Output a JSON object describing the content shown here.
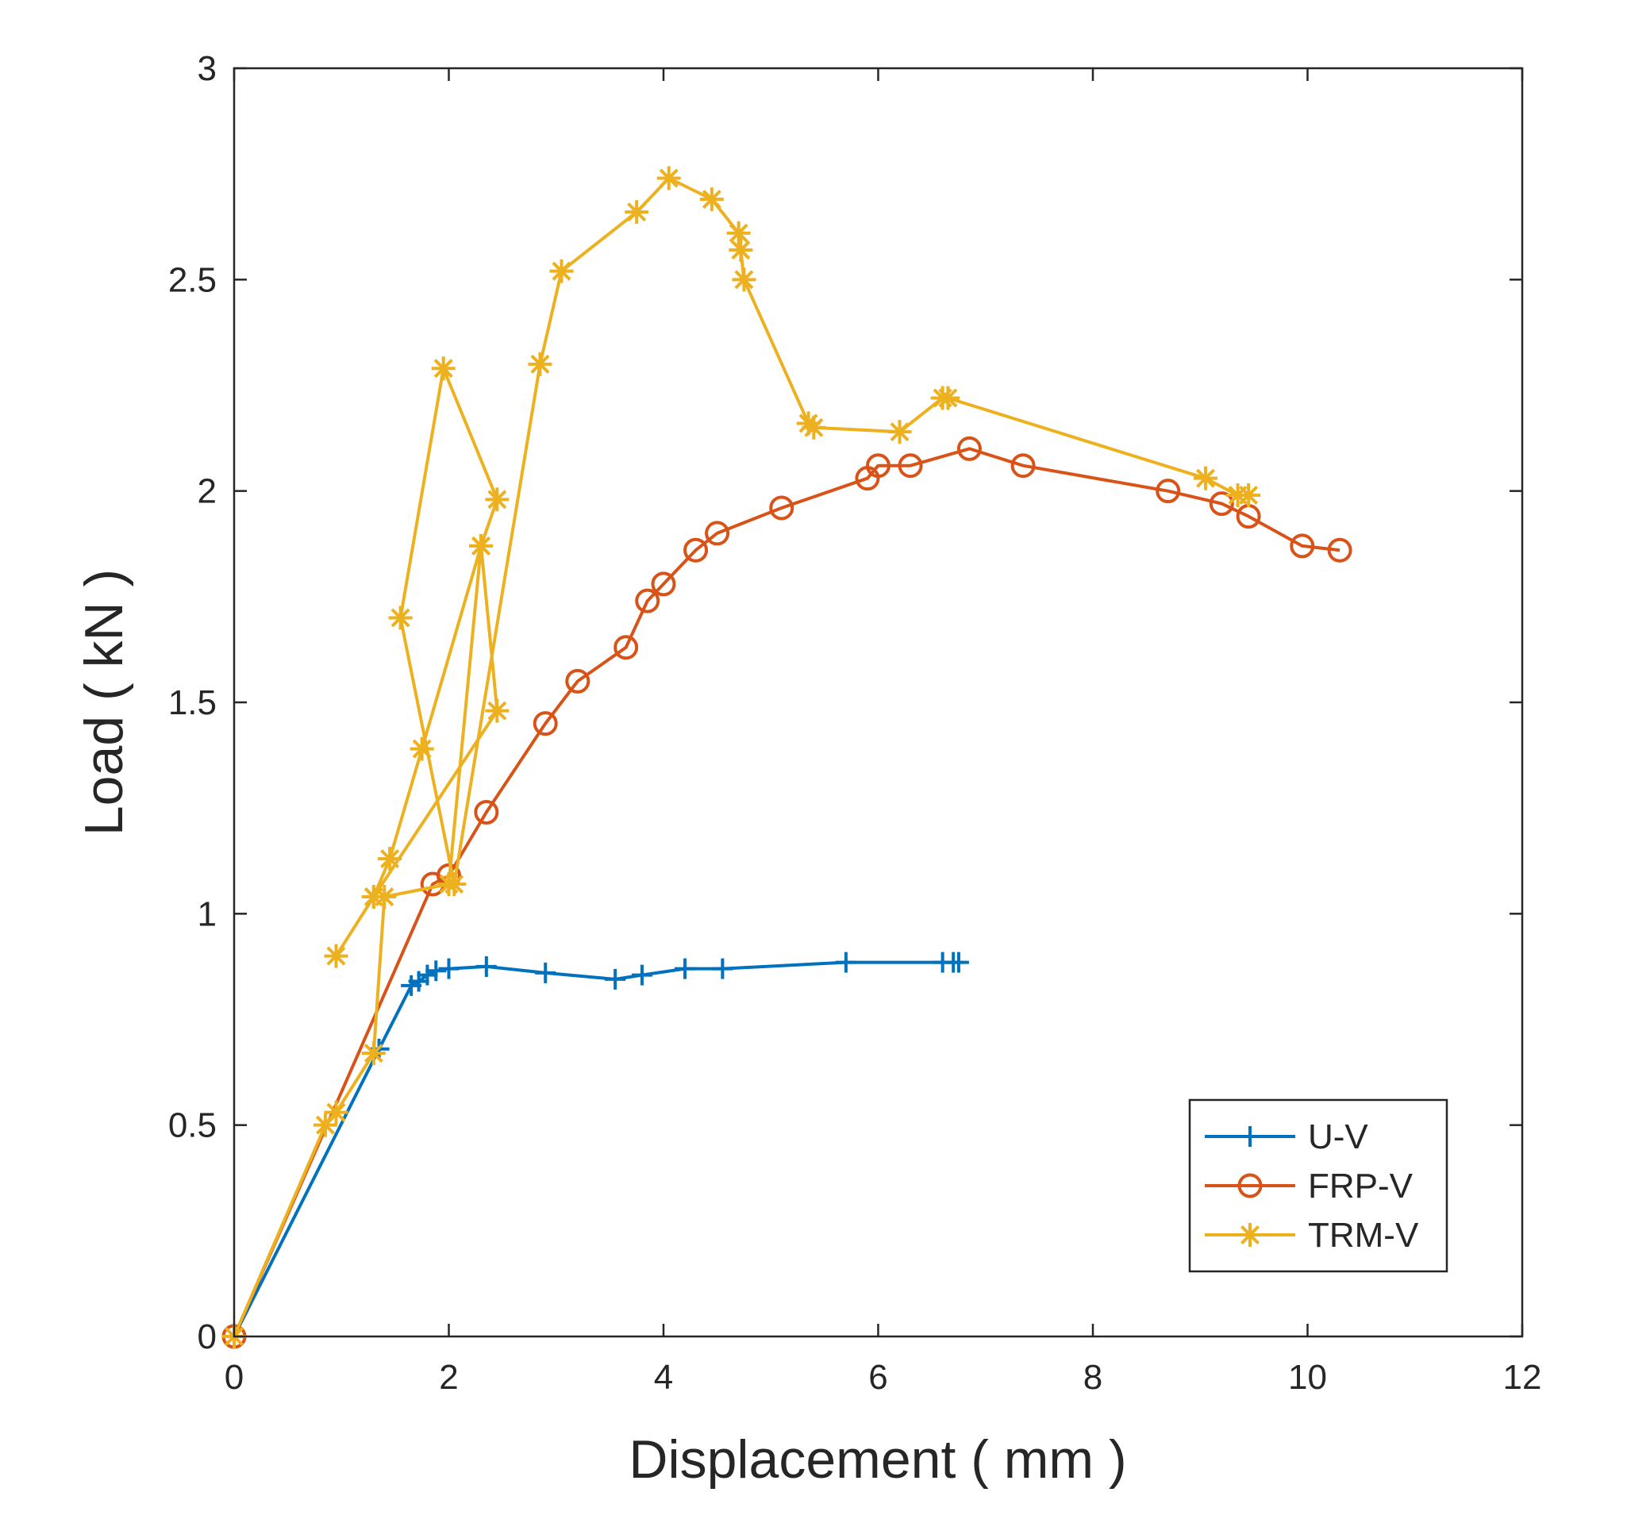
{
  "chart_data": {
    "type": "line",
    "title": "",
    "xlabel": "Displacement ( mm )",
    "ylabel": "Load ( kN )",
    "xlim": [
      0,
      12
    ],
    "ylim": [
      0,
      3
    ],
    "xticks": [
      0,
      2,
      4,
      6,
      8,
      10,
      12
    ],
    "yticks": [
      0,
      0.5,
      1,
      1.5,
      2,
      2.5,
      3
    ],
    "xtick_labels": [
      "0",
      "2",
      "4",
      "6",
      "8",
      "10",
      "12"
    ],
    "ytick_labels": [
      "0",
      "0.5",
      "1",
      "1.5",
      "2",
      "2.5",
      "3"
    ],
    "grid": false,
    "legend_position": "bottom-right",
    "series": [
      {
        "name": "U-V",
        "color": "#0072BD",
        "marker": "plus",
        "x": [
          0,
          1.35,
          1.65,
          1.72,
          1.8,
          1.88,
          2.0,
          2.35,
          2.9,
          3.55,
          3.8,
          4.2,
          4.55,
          5.7,
          6.6,
          6.7,
          6.75
        ],
        "y": [
          0,
          0.68,
          0.83,
          0.84,
          0.855,
          0.865,
          0.87,
          0.875,
          0.86,
          0.845,
          0.855,
          0.87,
          0.87,
          0.885,
          0.885,
          0.885,
          0.885
        ]
      },
      {
        "name": "FRP-V",
        "color": "#D95319",
        "marker": "circle",
        "x": [
          0,
          1.85,
          2.0,
          2.35,
          2.9,
          3.2,
          3.65,
          3.85,
          4.0,
          4.3,
          4.5,
          5.1,
          5.9,
          6.0,
          6.3,
          6.85,
          7.35,
          8.7,
          9.2,
          9.45,
          9.95,
          10.3
        ],
        "y": [
          0,
          1.07,
          1.09,
          1.24,
          1.45,
          1.55,
          1.63,
          1.74,
          1.78,
          1.86,
          1.9,
          1.96,
          2.03,
          2.06,
          2.06,
          2.1,
          2.06,
          2.0,
          1.97,
          1.94,
          1.87,
          1.86
        ]
      },
      {
        "name": "TRM-V",
        "color": "#EDB120",
        "marker": "asterisk",
        "x": [
          0,
          0.85,
          0.95,
          1.3,
          1.4,
          2.0,
          2.3,
          2.45,
          1.3,
          0.95,
          1.3,
          1.45,
          1.75,
          2.3,
          2.45,
          1.95,
          1.55,
          2.05,
          2.85,
          3.05,
          3.75,
          4.05,
          4.45,
          4.7,
          4.72,
          4.75,
          5.35,
          5.4,
          6.2,
          6.6,
          6.65,
          9.05,
          9.35,
          9.45
        ],
        "y": [
          0,
          0.5,
          0.53,
          0.67,
          1.04,
          1.07,
          1.87,
          1.48,
          1.04,
          0.9,
          1.04,
          1.13,
          1.39,
          1.87,
          1.98,
          2.29,
          1.7,
          1.07,
          2.3,
          2.52,
          2.66,
          2.74,
          2.69,
          2.61,
          2.57,
          2.5,
          2.16,
          2.15,
          2.14,
          2.22,
          2.22,
          2.03,
          1.99,
          1.99
        ]
      }
    ]
  }
}
